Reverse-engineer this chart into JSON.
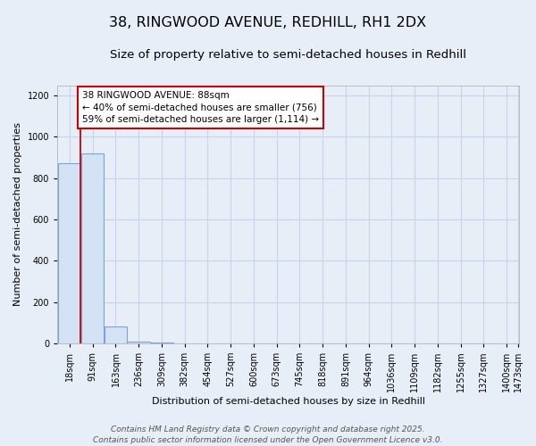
{
  "title_line1": "38, RINGWOOD AVENUE, REDHILL, RH1 2DX",
  "title_line2": "Size of property relative to semi-detached houses in Redhill",
  "xlabel": "Distribution of semi-detached houses by size in Redhill",
  "ylabel": "Number of semi-detached properties",
  "bins": [
    18,
    91,
    163,
    236,
    309,
    382,
    454,
    527,
    600,
    673,
    745,
    818,
    891,
    964,
    1036,
    1109,
    1182,
    1255,
    1327,
    1400,
    1473
  ],
  "bar_heights": [
    870,
    920,
    80,
    8,
    2,
    1,
    0,
    0,
    0,
    0,
    0,
    0,
    0,
    0,
    0,
    0,
    0,
    0,
    0,
    0
  ],
  "bar_color": "#d4e2f5",
  "bar_edgecolor": "#7ba3d4",
  "bar_linewidth": 0.8,
  "property_size": 88,
  "red_line_color": "#cc0000",
  "ylim": [
    0,
    1250
  ],
  "yticks": [
    0,
    200,
    400,
    600,
    800,
    1000,
    1200
  ],
  "annotation_text": "38 RINGWOOD AVENUE: 88sqm\n← 40% of semi-detached houses are smaller (756)\n59% of semi-detached houses are larger (1,114) →",
  "bg_color": "#e8eef8",
  "grid_color": "#c8d4e8",
  "footer_line1": "Contains HM Land Registry data © Crown copyright and database right 2025.",
  "footer_line2": "Contains public sector information licensed under the Open Government Licence v3.0.",
  "title_fontsize": 11.5,
  "subtitle_fontsize": 9.5,
  "axis_label_fontsize": 8,
  "tick_fontsize": 7,
  "annotation_fontsize": 7.5,
  "footer_fontsize": 6.5
}
